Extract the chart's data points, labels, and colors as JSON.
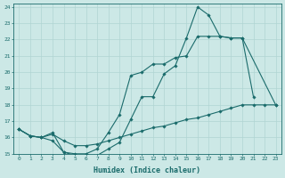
{
  "xlabel": "Humidex (Indice chaleur)",
  "xlim": [
    -0.5,
    23.5
  ],
  "ylim": [
    15,
    24.2
  ],
  "yticks": [
    15,
    16,
    17,
    18,
    19,
    20,
    21,
    22,
    23,
    24
  ],
  "xticks": [
    0,
    1,
    2,
    3,
    4,
    5,
    6,
    7,
    8,
    9,
    10,
    11,
    12,
    13,
    14,
    15,
    16,
    17,
    18,
    19,
    20,
    21,
    22,
    23
  ],
  "bg_color": "#cce8e6",
  "grid_color": "#b0d4d2",
  "line_color": "#1a6b6b",
  "curve1_x": [
    0,
    1,
    2,
    3,
    4,
    5,
    6,
    7,
    8,
    9,
    10,
    11,
    12,
    13,
    14,
    15,
    16,
    17,
    18,
    19,
    20,
    21
  ],
  "curve1_y": [
    16.5,
    16.1,
    16.0,
    16.3,
    15.1,
    14.9,
    14.9,
    14.9,
    15.3,
    15.7,
    17.1,
    18.5,
    18.5,
    19.9,
    20.4,
    22.1,
    24.0,
    23.5,
    22.2,
    22.1,
    22.1,
    18.5
  ],
  "curve2_x": [
    0,
    1,
    2,
    3,
    4,
    5,
    6,
    7,
    8,
    9,
    10,
    11,
    12,
    13,
    14,
    15,
    16,
    17,
    18,
    19,
    20,
    23
  ],
  "curve2_y": [
    16.5,
    16.1,
    16.0,
    15.8,
    15.1,
    15.0,
    15.0,
    15.3,
    16.3,
    17.4,
    19.8,
    20.0,
    20.5,
    20.5,
    20.9,
    21.0,
    22.2,
    22.2,
    22.2,
    22.1,
    22.1,
    18.0
  ],
  "curve3_x": [
    0,
    1,
    2,
    3,
    4,
    5,
    6,
    7,
    8,
    9,
    10,
    11,
    12,
    13,
    14,
    15,
    16,
    17,
    18,
    19,
    20,
    21,
    22,
    23
  ],
  "curve3_y": [
    16.5,
    16.1,
    16.0,
    16.2,
    15.8,
    15.5,
    15.5,
    15.6,
    15.8,
    16.0,
    16.2,
    16.4,
    16.6,
    16.7,
    16.9,
    17.1,
    17.2,
    17.4,
    17.6,
    17.8,
    18.0,
    18.0,
    18.0,
    18.0
  ]
}
